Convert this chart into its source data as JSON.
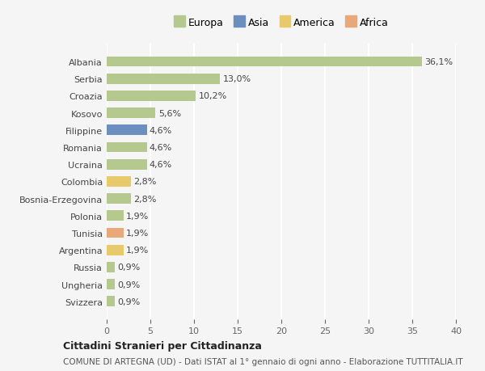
{
  "categories": [
    "Albania",
    "Serbia",
    "Croazia",
    "Kosovo",
    "Filippine",
    "Romania",
    "Ucraina",
    "Colombia",
    "Bosnia-Erzegovina",
    "Polonia",
    "Tunisia",
    "Argentina",
    "Russia",
    "Ungheria",
    "Svizzera"
  ],
  "values": [
    36.1,
    13.0,
    10.2,
    5.6,
    4.6,
    4.6,
    4.6,
    2.8,
    2.8,
    1.9,
    1.9,
    1.9,
    0.9,
    0.9,
    0.9
  ],
  "labels": [
    "36,1%",
    "13,0%",
    "10,2%",
    "5,6%",
    "4,6%",
    "4,6%",
    "4,6%",
    "2,8%",
    "2,8%",
    "1,9%",
    "1,9%",
    "1,9%",
    "0,9%",
    "0,9%",
    "0,9%"
  ],
  "colors": [
    "#b5c98e",
    "#b5c98e",
    "#b5c98e",
    "#b5c98e",
    "#6b8fbf",
    "#b5c98e",
    "#b5c98e",
    "#e8c96b",
    "#b5c98e",
    "#b5c98e",
    "#e8a87a",
    "#e8c96b",
    "#b5c98e",
    "#b5c98e",
    "#b5c98e"
  ],
  "legend": {
    "Europa": "#b5c98e",
    "Asia": "#6b8fbf",
    "America": "#e8c96b",
    "Africa": "#e8a87a"
  },
  "xlim": [
    0,
    40
  ],
  "xticks": [
    0,
    5,
    10,
    15,
    20,
    25,
    30,
    35,
    40
  ],
  "title": "Cittadini Stranieri per Cittadinanza",
  "subtitle": "COMUNE DI ARTEGNA (UD) - Dati ISTAT al 1° gennaio di ogni anno - Elaborazione TUTTITALIA.IT",
  "bg_color": "#f5f5f5",
  "grid_color": "#ffffff"
}
